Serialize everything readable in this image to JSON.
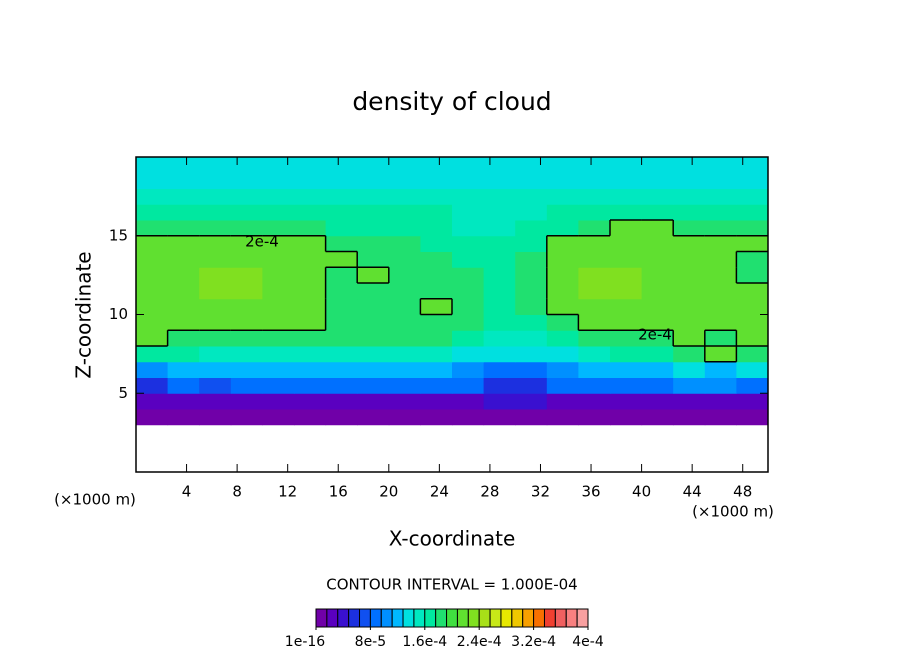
{
  "chart_data": {
    "type": "heatmap",
    "title": "density of cloud",
    "x_label": "X-coordinate",
    "y_label": "Z-coordinate",
    "x_unit_label": "(×1000 m)",
    "contour_interval_text": "CONTOUR INTERVAL = 1.000E-04",
    "xlim": [
      0,
      50
    ],
    "ylim": [
      0,
      20
    ],
    "xticks": [
      4,
      8,
      12,
      16,
      20,
      24,
      28,
      32,
      36,
      40,
      44,
      48
    ],
    "yticks": [
      5,
      10,
      15
    ],
    "contour": {
      "value": 0.0002,
      "label": "2e-4"
    },
    "z": [
      [
        null,
        null,
        null,
        null,
        null,
        null,
        null,
        null,
        null,
        null,
        null,
        null,
        null,
        null,
        null,
        null,
        null,
        null,
        null,
        null
      ],
      [
        null,
        null,
        null,
        null,
        null,
        null,
        null,
        null,
        null,
        null,
        null,
        null,
        null,
        null,
        null,
        null,
        null,
        null,
        null,
        null
      ],
      [
        null,
        null,
        null,
        null,
        null,
        null,
        null,
        null,
        null,
        null,
        null,
        null,
        null,
        null,
        null,
        null,
        null,
        null,
        null,
        null
      ],
      [
        1e-05,
        1e-05,
        1e-05,
        1e-05,
        1e-05,
        1e-05,
        1e-05,
        1e-05,
        1e-05,
        1e-05,
        1e-05,
        1e-05,
        1e-05,
        1e-05,
        1e-05,
        1e-05,
        1e-05,
        1e-05,
        1e-05,
        1e-05
      ],
      [
        3e-05,
        3e-05,
        2e-05,
        2e-05,
        3e-05,
        3e-05,
        3e-05,
        3e-05,
        3e-05,
        3e-05,
        3e-05,
        4e-05,
        4e-05,
        3e-05,
        3e-05,
        2e-05,
        3e-05,
        3e-05,
        3e-05,
        3e-05
      ],
      [
        6e-05,
        8e-05,
        7e-05,
        8e-05,
        9e-05,
        9e-05,
        9e-05,
        9e-05,
        9e-05,
        9e-05,
        8e-05,
        5e-05,
        5e-05,
        8e-05,
        9e-05,
        9e-05,
        9e-05,
        0.0001,
        0.0001,
        9e-05
      ],
      [
        0.00011,
        0.00012,
        0.00012,
        0.00012,
        0.00012,
        0.00012,
        0.00012,
        0.00012,
        0.00012,
        0.00012,
        0.00011,
        9e-05,
        9e-05,
        0.00011,
        0.00012,
        0.00012,
        0.00012,
        0.00013,
        0.00012,
        0.00013
      ],
      [
        0.00017,
        0.00016,
        0.00015,
        0.00015,
        0.00015,
        0.00015,
        0.00015,
        0.00015,
        0.00015,
        0.00015,
        0.00014,
        0.00013,
        0.00013,
        0.00014,
        0.00015,
        0.00016,
        0.00017,
        0.00019,
        0.00021,
        0.00019
      ],
      [
        0.00021,
        0.00019,
        0.00018,
        0.00018,
        0.00018,
        0.00018,
        0.00018,
        0.00018,
        0.00018,
        0.00018,
        0.00017,
        0.00015,
        0.00015,
        0.00017,
        0.00018,
        0.00018,
        0.00019,
        0.00021,
        0.00019,
        0.00021
      ],
      [
        0.00021,
        0.00021,
        0.00022,
        0.00022,
        0.00022,
        0.00021,
        0.00019,
        0.00019,
        0.00019,
        0.00019,
        0.00018,
        0.00016,
        0.00017,
        0.00019,
        0.00021,
        0.00021,
        0.00021,
        0.00022,
        0.00021,
        0.00021
      ],
      [
        0.00021,
        0.00022,
        0.00022,
        0.00022,
        0.00022,
        0.00022,
        0.00019,
        0.00019,
        0.00019,
        0.00021,
        0.00018,
        0.00017,
        0.00018,
        0.00021,
        0.00022,
        0.00022,
        0.00022,
        0.00022,
        0.00022,
        0.00021
      ],
      [
        0.00021,
        0.00022,
        0.00023,
        0.00023,
        0.00022,
        0.00022,
        0.00019,
        0.00019,
        0.00019,
        0.00019,
        0.00018,
        0.00017,
        0.00018,
        0.00021,
        0.00023,
        0.00023,
        0.00022,
        0.00022,
        0.00022,
        0.00021
      ],
      [
        0.00021,
        0.00022,
        0.00023,
        0.00023,
        0.00022,
        0.00022,
        0.00019,
        0.00021,
        0.00019,
        0.00019,
        0.00018,
        0.00017,
        0.00018,
        0.00021,
        0.00023,
        0.00023,
        0.00022,
        0.00022,
        0.00021,
        0.00019
      ],
      [
        0.00021,
        0.00022,
        0.00022,
        0.00022,
        0.00022,
        0.00021,
        0.00021,
        0.00019,
        0.00019,
        0.00018,
        0.00017,
        0.00016,
        0.00018,
        0.00021,
        0.00022,
        0.00022,
        0.00022,
        0.00022,
        0.00021,
        0.00019
      ],
      [
        0.00021,
        0.00021,
        0.00021,
        0.00021,
        0.00021,
        0.00021,
        0.00018,
        0.00018,
        0.00018,
        0.00017,
        0.00016,
        0.00016,
        0.00017,
        0.00021,
        0.00021,
        0.00021,
        0.00021,
        0.00021,
        0.00021,
        0.00021
      ],
      [
        0.00018,
        0.00018,
        0.00018,
        0.00018,
        0.00018,
        0.00018,
        0.00017,
        0.00017,
        0.00017,
        0.00016,
        0.00015,
        0.00015,
        0.00016,
        0.00017,
        0.00018,
        0.00021,
        0.00021,
        0.00018,
        0.00018,
        0.00018
      ],
      [
        0.00016,
        0.00016,
        0.00016,
        0.00016,
        0.00016,
        0.00016,
        0.00016,
        0.00016,
        0.00016,
        0.00016,
        0.00015,
        0.00015,
        0.00015,
        0.00016,
        0.00016,
        0.00016,
        0.00016,
        0.00016,
        0.00016,
        0.00016
      ],
      [
        0.00015,
        0.00015,
        0.00015,
        0.00015,
        0.00015,
        0.00015,
        0.00015,
        0.00015,
        0.00015,
        0.00015,
        0.00015,
        0.00015,
        0.00015,
        0.00015,
        0.00015,
        0.00015,
        0.00015,
        0.00015,
        0.00015,
        0.00015
      ],
      [
        0.00014,
        0.00014,
        0.00014,
        0.00014,
        0.00014,
        0.00014,
        0.00014,
        0.00014,
        0.00014,
        0.00014,
        0.00014,
        0.00014,
        0.00014,
        0.00014,
        0.00014,
        0.00014,
        0.00014,
        0.00014,
        0.00014,
        0.00014
      ],
      [
        0.00013,
        0.00013,
        0.00013,
        0.00013,
        0.00013,
        0.00013,
        0.00013,
        0.00013,
        0.00013,
        0.00013,
        0.00013,
        0.00013,
        0.00013,
        0.00013,
        0.00013,
        0.00013,
        0.00013,
        0.00013,
        0.00013,
        0.00013
      ]
    ],
    "colorbar": {
      "lim": [
        0,
        0.0004
      ],
      "colors": [
        "#7000a8",
        "#5a00c0",
        "#3a10d0",
        "#1c30e0",
        "#1050f0",
        "#0070ff",
        "#0090ff",
        "#00b8ff",
        "#00e0e0",
        "#00e8c0",
        "#00e8a0",
        "#20e070",
        "#40e040",
        "#60e030",
        "#80e020",
        "#a8e018",
        "#c8e818",
        "#e8e800",
        "#f0c800",
        "#f8a000",
        "#f87000",
        "#f04030",
        "#f06060",
        "#f88080",
        "#f8a0a0"
      ],
      "ticks": [
        1e-16,
        {
          "value": 8e-05,
          "label": "8e-5"
        },
        {
          "value": 0.00016,
          "label": "1.6e-4"
        },
        {
          "value": 0.00024,
          "label": "2.4e-4"
        },
        {
          "value": 0.00032,
          "label": "3.2e-4"
        },
        {
          "value": 0.0004,
          "label": "4e-4"
        }
      ]
    }
  }
}
